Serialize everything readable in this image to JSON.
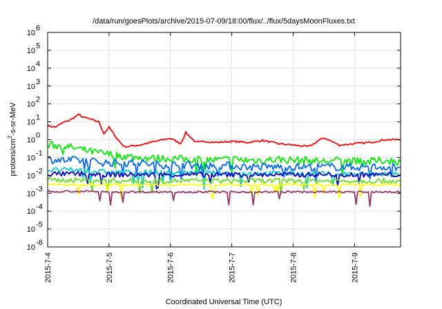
{
  "chart_data": {
    "type": "line",
    "title": "/data/run/goesPlots/archive/2015-07-09/18:00/flux/../flux/5daysMoonFluxes.txt",
    "xlabel": "Coordinated Universal Time (UTC)",
    "ylabel_main": "protons/cm",
    "ylabel_sup": "2",
    "ylabel_rest": "-s-sr-MeV",
    "log_y": true,
    "grid": true,
    "ylim": [
      1e-06,
      1000000.0
    ],
    "xlim": [
      "2015-07-04 00:00",
      "2015-07-09 18:00"
    ],
    "y_ticks": [
      {
        "base": "10",
        "exp": "-6",
        "value": 1e-06
      },
      {
        "base": "10",
        "exp": "-5",
        "value": 1e-05
      },
      {
        "base": "10",
        "exp": "-4",
        "value": 0.0001
      },
      {
        "base": "10",
        "exp": "-3",
        "value": 0.001
      },
      {
        "base": "10",
        "exp": "-2",
        "value": 0.01
      },
      {
        "base": "10",
        "exp": "-1",
        "value": 0.1
      },
      {
        "base": "10",
        "exp": "0",
        "value": 1
      },
      {
        "base": "10",
        "exp": "1",
        "value": 10
      },
      {
        "base": "10",
        "exp": "2",
        "value": 100
      },
      {
        "base": "10",
        "exp": "3",
        "value": 1000
      },
      {
        "base": "10",
        "exp": "4",
        "value": 10000
      },
      {
        "base": "10",
        "exp": "5",
        "value": 100000
      },
      {
        "base": "10",
        "exp": "6",
        "value": 1000000
      }
    ],
    "x_ticks": [
      {
        "label": "2015-7-4",
        "value": "2015-07-04"
      },
      {
        "label": "2015-7-5",
        "value": "2015-07-05"
      },
      {
        "label": "2015-7-6",
        "value": "2015-07-06"
      },
      {
        "label": "2015-7-7",
        "value": "2015-07-07"
      },
      {
        "label": "2015-7-8",
        "value": "2015-07-08"
      },
      {
        "label": "2015-7-9",
        "value": "2015-07-09"
      }
    ],
    "series": [
      {
        "color": "#ff0000",
        "x": [
          "2015-07-04 00:00",
          "2015-07-04 03:00",
          "2015-07-04 06:00",
          "2015-07-04 09:00",
          "2015-07-04 12:00",
          "2015-07-04 14:00",
          "2015-07-04 16:00",
          "2015-07-04 18:00",
          "2015-07-04 20:00",
          "2015-07-04 22:00",
          "2015-07-05 00:00",
          "2015-07-05 03:00",
          "2015-07-05 06:00",
          "2015-07-05 12:00",
          "2015-07-05 18:00",
          "2015-07-06 00:00",
          "2015-07-06 04:00",
          "2015-07-06 06:00",
          "2015-07-06 10:00",
          "2015-07-06 14:00",
          "2015-07-06 18:00",
          "2015-07-07 00:00",
          "2015-07-07 06:00",
          "2015-07-07 12:00",
          "2015-07-07 18:00",
          "2015-07-08 00:00",
          "2015-07-08 06:00",
          "2015-07-08 12:00",
          "2015-07-08 18:00",
          "2015-07-09 00:00",
          "2015-07-09 06:00",
          "2015-07-09 12:00",
          "2015-07-09 18:00"
        ],
        "values": [
          6,
          5,
          9,
          13,
          25,
          18,
          15,
          12,
          10,
          2.2,
          5,
          1.2,
          0.4,
          0.5,
          0.8,
          1.2,
          0.6,
          2.5,
          0.7,
          0.8,
          0.7,
          0.8,
          0.7,
          0.9,
          0.6,
          0.5,
          0.4,
          1.3,
          0.5,
          0.6,
          0.7,
          1.0,
          1.0
        ]
      },
      {
        "color": "#00ee00",
        "x": [
          "2015-07-04 00:00",
          "2015-07-04 06:00",
          "2015-07-04 12:00",
          "2015-07-04 18:00",
          "2015-07-05 00:00",
          "2015-07-05 06:00",
          "2015-07-05 12:00",
          "2015-07-05 18:00",
          "2015-07-06 00:00",
          "2015-07-06 06:00",
          "2015-07-06 12:00",
          "2015-07-06 18:00",
          "2015-07-07 00:00",
          "2015-07-07 06:00",
          "2015-07-07 12:00",
          "2015-07-07 18:00",
          "2015-07-08 00:00",
          "2015-07-08 06:00",
          "2015-07-08 12:00",
          "2015-07-08 18:00",
          "2015-07-09 00:00",
          "2015-07-09 06:00",
          "2015-07-09 12:00",
          "2015-07-09 18:00"
        ],
        "values": [
          0.5,
          0.45,
          0.3,
          0.2,
          0.15,
          0.12,
          0.1,
          0.09,
          0.09,
          0.08,
          0.08,
          0.07,
          0.08,
          0.07,
          0.07,
          0.08,
          0.07,
          0.07,
          0.06,
          0.07,
          0.06,
          0.06,
          0.07,
          0.06
        ]
      },
      {
        "color": "#0066ff",
        "x": [
          "2015-07-04 00:00",
          "2015-07-04 06:00",
          "2015-07-04 12:00",
          "2015-07-04 18:00",
          "2015-07-05 00:00",
          "2015-07-05 06:00",
          "2015-07-05 12:00",
          "2015-07-05 18:00",
          "2015-07-06 00:00",
          "2015-07-06 06:00",
          "2015-07-06 12:00",
          "2015-07-06 18:00",
          "2015-07-07 00:00",
          "2015-07-07 06:00",
          "2015-07-07 12:00",
          "2015-07-07 18:00",
          "2015-07-08 00:00",
          "2015-07-08 06:00",
          "2015-07-08 12:00",
          "2015-07-08 18:00",
          "2015-07-09 00:00",
          "2015-07-09 06:00",
          "2015-07-09 12:00",
          "2015-07-09 18:00"
        ],
        "values": [
          0.08,
          0.07,
          0.07,
          0.06,
          0.05,
          0.05,
          0.05,
          0.04,
          0.04,
          0.04,
          0.035,
          0.035,
          0.035,
          0.03,
          0.03,
          0.03,
          0.03,
          0.03,
          0.03,
          0.03,
          0.03,
          0.03,
          0.03,
          0.03
        ]
      },
      {
        "color": "#00cccc",
        "x": [
          "2015-07-04 00:00",
          "2015-07-04 12:00",
          "2015-07-05 00:00",
          "2015-07-05 12:00",
          "2015-07-06 00:00",
          "2015-07-06 12:00",
          "2015-07-07 00:00",
          "2015-07-07 12:00",
          "2015-07-08 00:00",
          "2015-07-08 12:00",
          "2015-07-09 00:00",
          "2015-07-09 12:00",
          "2015-07-09 18:00"
        ],
        "values": [
          0.02,
          0.02,
          0.015,
          0.015,
          0.014,
          0.014,
          0.013,
          0.013,
          0.013,
          0.012,
          0.012,
          0.012,
          0.012
        ]
      },
      {
        "color": "#0000cc",
        "x": [
          "2015-07-04 00:00",
          "2015-07-04 12:00",
          "2015-07-05 00:00",
          "2015-07-05 12:00",
          "2015-07-06 00:00",
          "2015-07-06 12:00",
          "2015-07-07 00:00",
          "2015-07-07 12:00",
          "2015-07-08 00:00",
          "2015-07-08 12:00",
          "2015-07-09 00:00",
          "2015-07-09 12:00",
          "2015-07-09 18:00"
        ],
        "values": [
          0.012,
          0.012,
          0.011,
          0.011,
          0.011,
          0.011,
          0.011,
          0.011,
          0.011,
          0.011,
          0.011,
          0.011,
          0.011
        ]
      },
      {
        "color": "#66dd22",
        "x": [
          "2015-07-04 00:00",
          "2015-07-04 12:00",
          "2015-07-05 00:00",
          "2015-07-05 12:00",
          "2015-07-06 00:00",
          "2015-07-06 12:00",
          "2015-07-07 00:00",
          "2015-07-07 12:00",
          "2015-07-08 00:00",
          "2015-07-08 12:00",
          "2015-07-09 00:00",
          "2015-07-09 12:00",
          "2015-07-09 18:00"
        ],
        "values": [
          0.0055,
          0.0055,
          0.005,
          0.005,
          0.005,
          0.005,
          0.005,
          0.005,
          0.005,
          0.005,
          0.005,
          0.005,
          0.005
        ]
      },
      {
        "color": "#ffff00",
        "x": [
          "2015-07-04 00:00",
          "2015-07-04 12:00",
          "2015-07-05 00:00",
          "2015-07-05 12:00",
          "2015-07-06 00:00",
          "2015-07-06 12:00",
          "2015-07-07 00:00",
          "2015-07-07 12:00",
          "2015-07-08 00:00",
          "2015-07-08 12:00",
          "2015-07-09 00:00",
          "2015-07-09 12:00",
          "2015-07-09 18:00"
        ],
        "values": [
          0.003,
          0.003,
          0.003,
          0.003,
          0.003,
          0.003,
          0.003,
          0.003,
          0.003,
          0.003,
          0.003,
          0.003,
          0.003
        ]
      },
      {
        "color": "#993366",
        "x": [
          "2015-07-04 00:00",
          "2015-07-04 12:00",
          "2015-07-05 00:00",
          "2015-07-05 12:00",
          "2015-07-06 00:00",
          "2015-07-06 12:00",
          "2015-07-07 00:00",
          "2015-07-07 12:00",
          "2015-07-08 00:00",
          "2015-07-08 12:00",
          "2015-07-09 00:00",
          "2015-07-09 12:00",
          "2015-07-09 18:00"
        ],
        "values": [
          0.0013,
          0.0013,
          0.0012,
          0.0012,
          0.0012,
          0.0012,
          0.0012,
          0.0012,
          0.0012,
          0.0012,
          0.0012,
          0.0012,
          0.0012
        ]
      }
    ]
  }
}
